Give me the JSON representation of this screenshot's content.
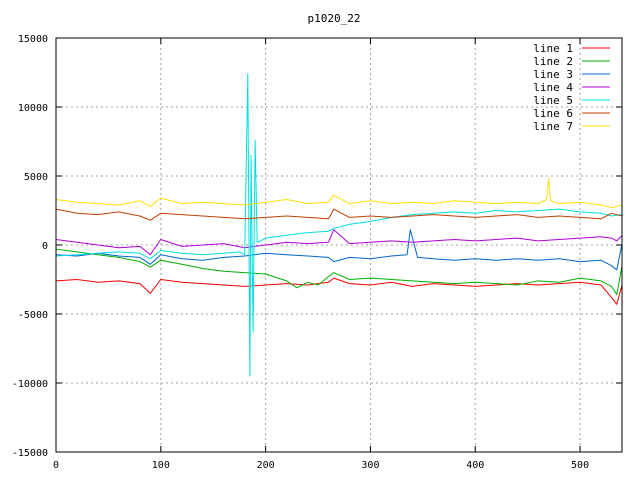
{
  "chart_data": {
    "type": "line",
    "title": "p1020_22",
    "xlabel": "",
    "ylabel": "",
    "xlim": [
      0,
      540
    ],
    "ylim": [
      -15000,
      15000
    ],
    "xticks": [
      0,
      100,
      200,
      300,
      400,
      500
    ],
    "yticks": [
      -15000,
      -10000,
      -5000,
      0,
      5000,
      10000,
      15000
    ],
    "grid": true,
    "legend_position": "top-right",
    "series": [
      {
        "name": "line 1",
        "color": "#ff0000",
        "x": [
          0,
          20,
          40,
          60,
          80,
          90,
          100,
          120,
          140,
          160,
          180,
          200,
          220,
          240,
          260,
          265,
          280,
          300,
          320,
          340,
          360,
          380,
          400,
          420,
          440,
          460,
          480,
          500,
          520,
          530,
          535,
          540
        ],
        "y": [
          -2600,
          -2500,
          -2700,
          -2600,
          -2800,
          -3500,
          -2500,
          -2700,
          -2800,
          -2900,
          -3000,
          -2900,
          -2800,
          -2900,
          -2700,
          -2400,
          -2800,
          -2900,
          -2700,
          -3000,
          -2800,
          -2900,
          -3000,
          -2900,
          -2800,
          -2900,
          -2800,
          -2700,
          -2900,
          -3800,
          -4300,
          -2900
        ]
      },
      {
        "name": "line 2",
        "color": "#00b000",
        "x": [
          0,
          20,
          40,
          60,
          80,
          90,
          100,
          120,
          140,
          160,
          180,
          200,
          220,
          230,
          240,
          250,
          260,
          265,
          280,
          300,
          320,
          340,
          360,
          380,
          400,
          420,
          440,
          460,
          480,
          500,
          520,
          530,
          535,
          540
        ],
        "y": [
          -300,
          -500,
          -700,
          -900,
          -1200,
          -1600,
          -1100,
          -1400,
          -1700,
          -1900,
          -2000,
          -2100,
          -2600,
          -3100,
          -2700,
          -2900,
          -2300,
          -2000,
          -2500,
          -2400,
          -2500,
          -2600,
          -2700,
          -2800,
          -2700,
          -2800,
          -2900,
          -2600,
          -2700,
          -2400,
          -2600,
          -3000,
          -3600,
          -1500
        ]
      },
      {
        "name": "line 3",
        "color": "#0066cc",
        "x": [
          0,
          20,
          40,
          60,
          80,
          90,
          100,
          120,
          140,
          160,
          180,
          200,
          220,
          240,
          260,
          265,
          280,
          300,
          320,
          335,
          338,
          345,
          360,
          380,
          400,
          420,
          440,
          460,
          480,
          500,
          520,
          530,
          535,
          540
        ],
        "y": [
          -700,
          -800,
          -600,
          -800,
          -900,
          -1400,
          -700,
          -1000,
          -1100,
          -900,
          -800,
          -600,
          -700,
          -800,
          -900,
          -1200,
          -900,
          -1000,
          -800,
          -700,
          1100,
          -900,
          -1000,
          -1100,
          -1000,
          -1100,
          -1000,
          -1100,
          -1000,
          -1200,
          -1100,
          -1500,
          -1800,
          100
        ]
      },
      {
        "name": "line 4",
        "color": "#b000d8",
        "x": [
          0,
          20,
          40,
          60,
          80,
          90,
          100,
          120,
          140,
          160,
          180,
          200,
          220,
          240,
          260,
          265,
          280,
          300,
          320,
          340,
          360,
          380,
          400,
          420,
          440,
          460,
          480,
          500,
          520,
          530,
          535,
          540
        ],
        "y": [
          400,
          200,
          0,
          -200,
          -100,
          -700,
          400,
          -100,
          0,
          100,
          -200,
          0,
          200,
          100,
          200,
          1100,
          100,
          200,
          300,
          200,
          300,
          400,
          300,
          400,
          500,
          300,
          400,
          500,
          600,
          500,
          300,
          700
        ]
      },
      {
        "name": "line 5",
        "color": "#00e0e0",
        "x": [
          0,
          20,
          40,
          60,
          80,
          90,
          100,
          120,
          140,
          160,
          175,
          180,
          183,
          185,
          186,
          188,
          190,
          192,
          195,
          200,
          220,
          240,
          260,
          265,
          280,
          300,
          320,
          340,
          360,
          380,
          400,
          420,
          440,
          460,
          480,
          500,
          520,
          530,
          540
        ],
        "y": [
          -800,
          -700,
          -600,
          -500,
          -600,
          -1000,
          -400,
          -600,
          -700,
          -600,
          -500,
          -700,
          12400,
          -9500,
          6500,
          -6300,
          7600,
          200,
          300,
          500,
          700,
          900,
          1000,
          1200,
          1500,
          1700,
          2000,
          2200,
          2300,
          2400,
          2300,
          2500,
          2400,
          2500,
          2600,
          2400,
          2300,
          2100,
          2200
        ]
      },
      {
        "name": "line 6",
        "color": "#c04000",
        "x": [
          0,
          20,
          40,
          60,
          80,
          90,
          100,
          120,
          140,
          160,
          180,
          200,
          220,
          240,
          260,
          265,
          280,
          300,
          320,
          340,
          360,
          380,
          400,
          420,
          440,
          460,
          480,
          500,
          520,
          530,
          540
        ],
        "y": [
          2600,
          2300,
          2200,
          2400,
          2100,
          1800,
          2300,
          2200,
          2100,
          2000,
          1900,
          2000,
          2100,
          2000,
          1900,
          2600,
          2000,
          2100,
          2000,
          2100,
          2200,
          2100,
          2000,
          2100,
          2200,
          2000,
          2100,
          2000,
          1900,
          2300,
          2100
        ]
      },
      {
        "name": "line 7",
        "color": "#ffe000",
        "x": [
          0,
          20,
          40,
          60,
          80,
          90,
          100,
          120,
          140,
          160,
          180,
          200,
          220,
          240,
          260,
          265,
          280,
          300,
          320,
          340,
          360,
          380,
          400,
          420,
          440,
          460,
          468,
          470,
          472,
          480,
          500,
          520,
          530,
          540
        ],
        "y": [
          3300,
          3100,
          3000,
          2900,
          3200,
          2800,
          3400,
          3000,
          3100,
          3000,
          2900,
          3100,
          3300,
          3000,
          3100,
          3600,
          3000,
          3200,
          3000,
          3100,
          3000,
          3200,
          3100,
          3000,
          3100,
          3000,
          3300,
          4800,
          3200,
          3000,
          3100,
          2900,
          2700,
          2900
        ]
      }
    ]
  }
}
